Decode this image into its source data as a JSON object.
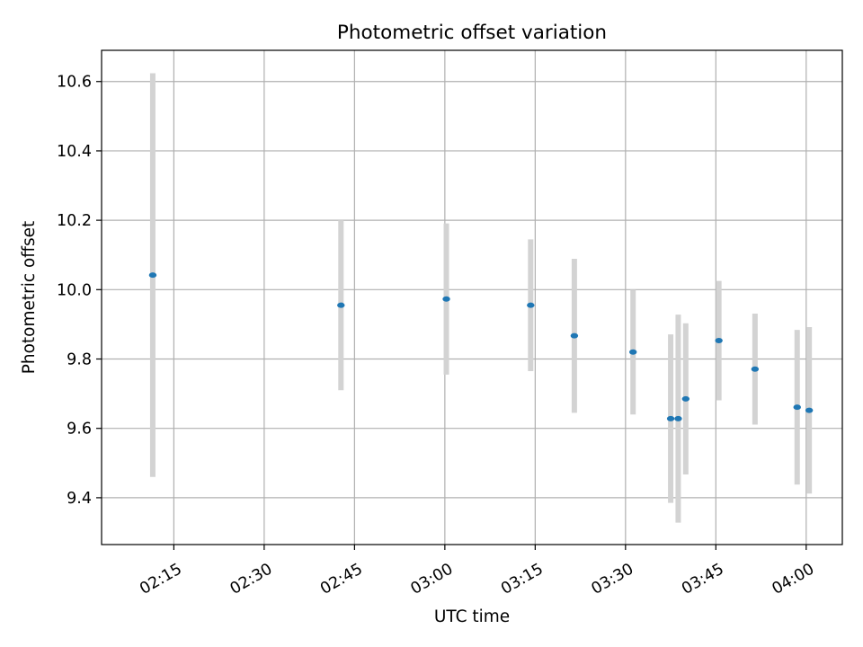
{
  "chart_data": {
    "type": "scatter",
    "title": "Photometric offset variation",
    "xlabel": "UTC time",
    "ylabel": "Photometric offset",
    "xlim": [
      "02:03:00",
      "04:06:00"
    ],
    "ylim": [
      9.265,
      10.69
    ],
    "x_tick_labels": [
      "02:15",
      "02:30",
      "02:45",
      "03:00",
      "03:15",
      "03:30",
      "03:45",
      "04:00"
    ],
    "x_ticks": [
      "02:15",
      "02:30",
      "02:45",
      "03:00",
      "03:15",
      "03:30",
      "03:45",
      "04:00"
    ],
    "y_ticks": [
      9.4,
      9.6,
      9.8,
      10.0,
      10.2,
      10.4,
      10.6
    ],
    "y_tick_labels": [
      "9.4",
      "9.6",
      "9.8",
      "10.0",
      "10.2",
      "10.4",
      "10.6"
    ],
    "grid": true,
    "marker_color": "#1f77b4",
    "errorbar_color": "#d3d3d3",
    "points": [
      {
        "x": "02:11:30",
        "y": 10.042,
        "err": 0.582
      },
      {
        "x": "02:42:45",
        "y": 9.955,
        "err": 0.245
      },
      {
        "x": "03:00:15",
        "y": 9.973,
        "err": 0.218
      },
      {
        "x": "03:14:15",
        "y": 9.955,
        "err": 0.19
      },
      {
        "x": "03:21:30",
        "y": 9.867,
        "err": 0.222
      },
      {
        "x": "03:31:15",
        "y": 9.82,
        "err": 0.18
      },
      {
        "x": "03:37:30",
        "y": 9.628,
        "err": 0.243
      },
      {
        "x": "03:38:45",
        "y": 9.628,
        "err": 0.3
      },
      {
        "x": "03:40:00",
        "y": 9.685,
        "err": 0.218
      },
      {
        "x": "03:45:30",
        "y": 9.853,
        "err": 0.172
      },
      {
        "x": "03:51:30",
        "y": 9.771,
        "err": 0.16
      },
      {
        "x": "03:58:30",
        "y": 9.661,
        "err": 0.223
      },
      {
        "x": "04:00:30",
        "y": 9.652,
        "err": 0.24
      }
    ]
  }
}
